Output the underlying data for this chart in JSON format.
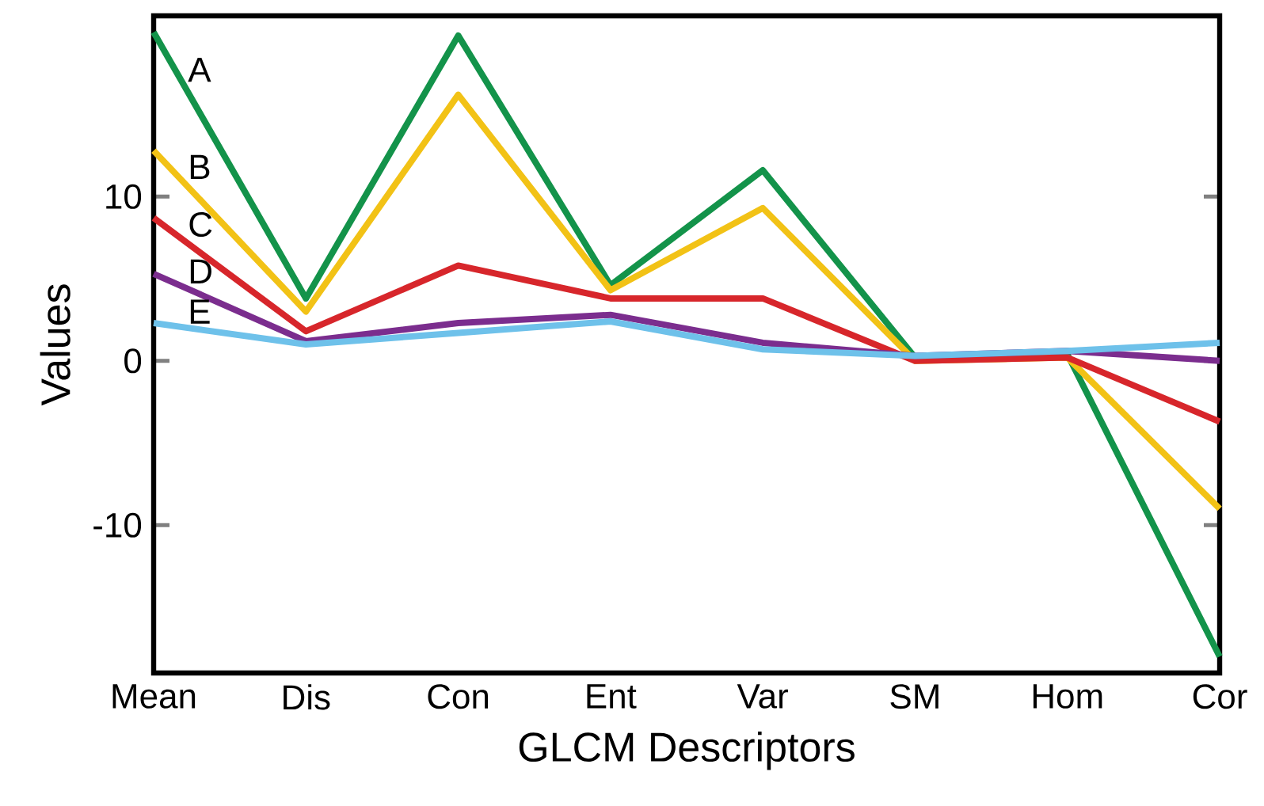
{
  "chart_data": {
    "type": "line",
    "xlabel": "GLCM Descriptors",
    "ylabel": "Values",
    "categories": [
      "Mean",
      "Dis",
      "Con",
      "Ent",
      "Var",
      "SM",
      "Hom",
      "Cor"
    ],
    "series": [
      {
        "name": "A",
        "color": "#13934a",
        "values": [
          20,
          3.8,
          19.8,
          4.6,
          11.6,
          0.2,
          0.4,
          -18
        ]
      },
      {
        "name": "B",
        "color": "#f2c216",
        "values": [
          12.8,
          3.0,
          16.2,
          4.3,
          9.3,
          0,
          0.2,
          -9
        ]
      },
      {
        "name": "C",
        "color": "#d7262b",
        "values": [
          8.7,
          1.8,
          5.8,
          3.8,
          3.8,
          0,
          0.2,
          -3.7
        ]
      },
      {
        "name": "D",
        "color": "#7b2d8e",
        "values": [
          5.3,
          1.2,
          2.3,
          2.8,
          1.1,
          0.3,
          0.6,
          0
        ]
      },
      {
        "name": "E",
        "color": "#6ec1ea",
        "values": [
          2.3,
          1.0,
          1.7,
          2.4,
          0.7,
          0.3,
          0.6,
          1.1
        ]
      }
    ],
    "ylim": [
      -19,
      21
    ],
    "yticks": [
      -10,
      0,
      10
    ]
  }
}
